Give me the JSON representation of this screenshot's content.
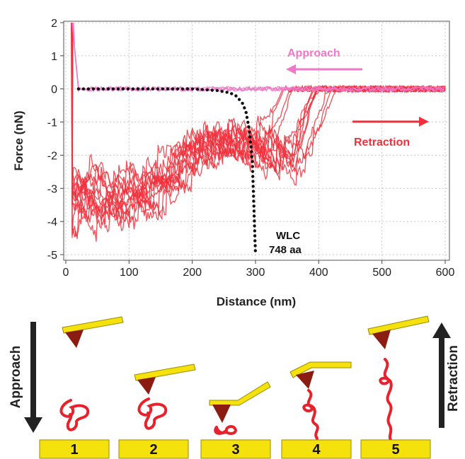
{
  "chart_data": {
    "type": "line",
    "xlabel": "Distance (nm)",
    "ylabel": "Force (nN)",
    "xlim": [
      0,
      600
    ],
    "ylim": [
      -5,
      2
    ],
    "xticks": [
      0,
      100,
      200,
      300,
      400,
      500,
      600
    ],
    "yticks": [
      2,
      1,
      0,
      -1,
      -2,
      -3,
      -4,
      -5
    ],
    "grid": true,
    "colors": {
      "approach": "#f078c8",
      "retraction": "#f0303c",
      "wlc": "#111111"
    },
    "annotations": {
      "approach": "Approach",
      "retraction": "Retraction",
      "wlc_line1": "WLC",
      "wlc_line2": "748 aa"
    },
    "series": [
      {
        "name": "Approach",
        "x": [
          10,
          20,
          50,
          100,
          200,
          300,
          400,
          450,
          600
        ],
        "y": [
          2.0,
          0.0,
          0.0,
          0.0,
          0.0,
          0.0,
          0.0,
          0.0,
          0.0
        ]
      },
      {
        "name": "Retraction",
        "x": [
          5,
          10,
          20,
          40,
          60,
          80,
          100,
          120,
          140,
          160,
          180,
          200,
          220,
          240,
          260,
          280,
          300,
          320,
          340,
          360,
          380,
          400,
          420,
          440,
          460,
          500,
          600
        ],
        "y": [
          2.0,
          -3.5,
          -2.6,
          -3.0,
          -3.4,
          -3.0,
          -3.2,
          -2.8,
          -3.0,
          -2.4,
          -2.2,
          -1.4,
          -1.6,
          -1.2,
          -1.4,
          -1.2,
          -1.5,
          -1.6,
          -1.9,
          -1.7,
          -2.0,
          -1.2,
          -0.6,
          -0.2,
          0.0,
          0.0,
          0.0
        ]
      }
    ],
    "wlc_fit": {
      "x": [
        20,
        100,
        200,
        240,
        260,
        270,
        280,
        285,
        290,
        295,
        300
      ],
      "y": [
        0.0,
        0.0,
        0.0,
        -0.05,
        -0.12,
        -0.22,
        -0.45,
        -0.7,
        -1.2,
        -2.2,
        -5.0
      ]
    }
  },
  "schematic": {
    "approach_label": "Approach",
    "retraction_label": "Retraction",
    "steps": [
      "1",
      "2",
      "3",
      "4",
      "5"
    ]
  }
}
